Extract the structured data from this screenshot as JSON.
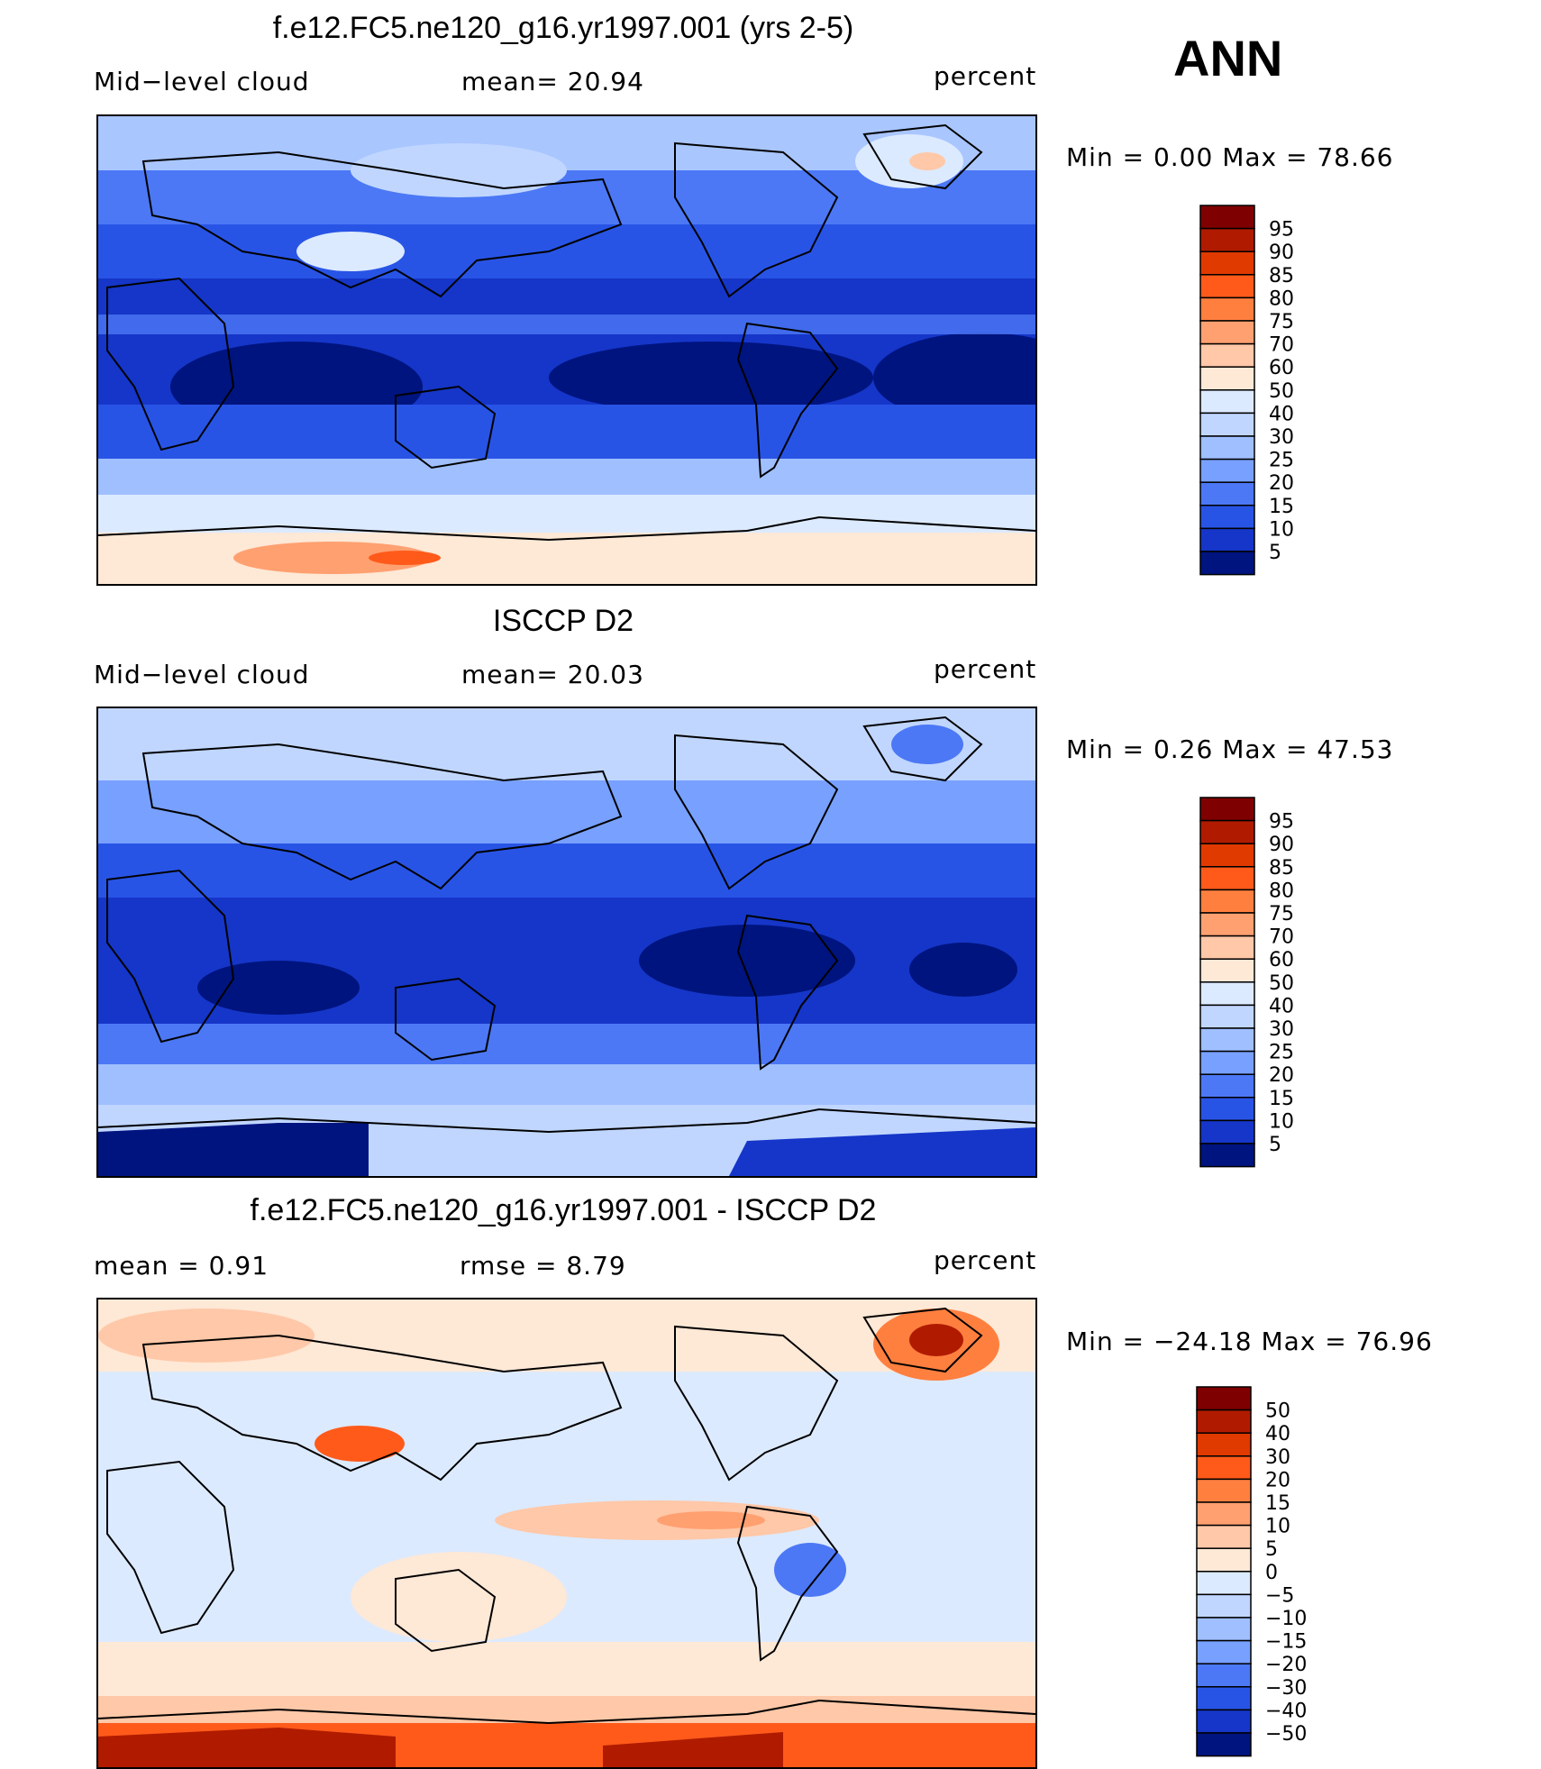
{
  "season": "ANN",
  "panels": [
    {
      "title": "f.e12.FC5.ne120_g16.yr1997.001 (yrs 2-5)",
      "left_label": "Mid−level cloud",
      "stat_text": "mean=   20.94",
      "units": "percent",
      "minmax_text": "Min  =    0.00  Max  =   78.66",
      "colorbar_labels": [
        "95",
        "90",
        "85",
        "80",
        "75",
        "70",
        "60",
        "50",
        "40",
        "30",
        "25",
        "20",
        "15",
        "10",
        "5"
      ],
      "colorbar_colors": [
        "#7f0000",
        "#b01b00",
        "#e03a00",
        "#ff5a1a",
        "#ff7f3f",
        "#ffa070",
        "#ffc8a8",
        "#fee8d6",
        "#dceaff",
        "#c0d6ff",
        "#9fbfff",
        "#78a0ff",
        "#4c78f5",
        "#2854e6",
        "#1536c8",
        "#00147f"
      ]
    },
    {
      "title": "ISCCP D2",
      "left_label": "Mid−level cloud",
      "stat_text": "mean=   20.03",
      "units": "percent",
      "minmax_text": "Min  =    0.26  Max  =   47.53",
      "colorbar_labels": [
        "95",
        "90",
        "85",
        "80",
        "75",
        "70",
        "60",
        "50",
        "40",
        "30",
        "25",
        "20",
        "15",
        "10",
        "5"
      ],
      "colorbar_colors": [
        "#7f0000",
        "#b01b00",
        "#e03a00",
        "#ff5a1a",
        "#ff7f3f",
        "#ffa070",
        "#ffc8a8",
        "#fee8d6",
        "#dceaff",
        "#c0d6ff",
        "#9fbfff",
        "#78a0ff",
        "#4c78f5",
        "#2854e6",
        "#1536c8",
        "#00147f"
      ]
    },
    {
      "title": "f.e12.FC5.ne120_g16.yr1997.001 - ISCCP D2",
      "left_label": "mean  =     0.91",
      "stat_text": "rmse  =     8.79",
      "units": "percent",
      "minmax_text": "Min  = −24.18  Max  =    76.96",
      "colorbar_labels": [
        "50",
        "40",
        "30",
        "20",
        "15",
        "10",
        "5",
        "0",
        "−5",
        "−10",
        "−15",
        "−20",
        "−30",
        "−40",
        "−50"
      ],
      "colorbar_colors": [
        "#7f0000",
        "#b01b00",
        "#e03a00",
        "#ff5a1a",
        "#ff7f3f",
        "#ffa070",
        "#ffc8a8",
        "#fee8d6",
        "#dceaff",
        "#c0d6ff",
        "#9fbfff",
        "#78a0ff",
        "#4c78f5",
        "#2854e6",
        "#1536c8",
        "#00147f"
      ]
    }
  ]
}
